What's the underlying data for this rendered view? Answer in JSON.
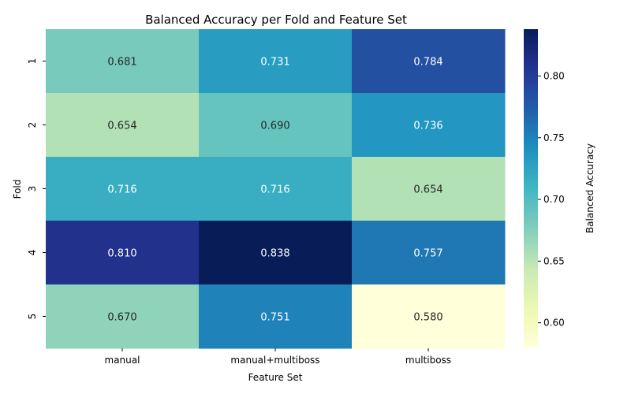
{
  "chart_data": {
    "type": "heatmap",
    "title": "Balanced Accuracy per Fold and Feature Set",
    "xlabel": "Feature Set",
    "ylabel": "Fold",
    "x_categories": [
      "manual",
      "manual+multiboss",
      "multiboss"
    ],
    "y_categories": [
      "1",
      "2",
      "3",
      "4",
      "5"
    ],
    "values": [
      [
        0.681,
        0.731,
        0.784
      ],
      [
        0.654,
        0.69,
        0.736
      ],
      [
        0.716,
        0.716,
        0.654
      ],
      [
        0.81,
        0.838,
        0.757
      ],
      [
        0.67,
        0.751,
        0.58
      ]
    ],
    "value_labels": [
      [
        "0.681",
        "0.731",
        "0.784"
      ],
      [
        "0.654",
        "0.690",
        "0.736"
      ],
      [
        "0.716",
        "0.716",
        "0.654"
      ],
      [
        "0.810",
        "0.838",
        "0.757"
      ],
      [
        "0.670",
        "0.751",
        "0.580"
      ]
    ],
    "colorbar": {
      "label": "Balanced Accuracy",
      "range": [
        0.58,
        0.838
      ],
      "ticks": [
        "0.60",
        "0.65",
        "0.70",
        "0.75",
        "0.80"
      ],
      "tick_values": [
        0.6,
        0.65,
        0.7,
        0.75,
        0.8
      ],
      "colormap": "YlGnBu"
    },
    "grid": false
  }
}
